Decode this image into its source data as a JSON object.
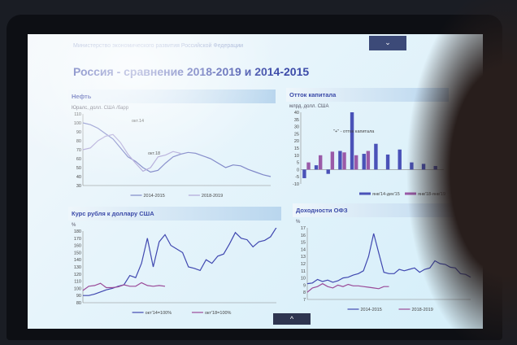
{
  "slide": {
    "org": "Министерство экономического развития Российской Федерации",
    "title": "Россия - сравнение 2018-2019 и 2014-2015",
    "top_button_icon": "chevron-down-icon",
    "bottom_button_icon": "chevron-up-icon"
  },
  "chart_data": [
    {
      "type": "line",
      "title": "Нефть",
      "ylabel": "Юралс, долл. США /барр",
      "ylim": [
        30,
        110
      ],
      "yticks": [
        30,
        40,
        50,
        60,
        70,
        80,
        90,
        100,
        110
      ],
      "annotations": [
        "окт.14",
        "окт.18"
      ],
      "series": [
        {
          "name": "2014-2015",
          "color": "#8088c8",
          "values": [
            100,
            98,
            94,
            88,
            82,
            72,
            62,
            57,
            50,
            45,
            47,
            55,
            62,
            65,
            67,
            66,
            63,
            60,
            55,
            50,
            53,
            52,
            48,
            45,
            42,
            40
          ]
        },
        {
          "name": "2018-2019",
          "color": "#b0a8d8",
          "values": [
            70,
            72,
            80,
            85,
            87,
            78,
            65,
            55,
            46,
            50,
            62,
            64,
            68,
            66
          ]
        }
      ],
      "legend": "bottom"
    },
    {
      "type": "bar",
      "title": "Отток капитала",
      "ylabel": "млрд. долл. США",
      "ylim": [
        -10,
        40
      ],
      "yticks": [
        -10,
        -5,
        0,
        5,
        10,
        15,
        20,
        25,
        30,
        35,
        40
      ],
      "annotations": [
        "\"+\" - отток капитала"
      ],
      "series": [
        {
          "name": "янв'14-дек'15",
          "color": "#4a52b8",
          "values": [
            -6,
            3,
            -3,
            13,
            40,
            11,
            18,
            10.5,
            14,
            5,
            4,
            2.5
          ]
        },
        {
          "name": "янв'18-янв'19",
          "color": "#9a5aa8",
          "values": [
            5,
            10,
            12.5,
            12,
            10,
            13,
            null,
            null,
            null,
            null,
            null,
            null
          ]
        }
      ],
      "legend": "bottom-right"
    },
    {
      "type": "line",
      "title": "Курс рубля к доллару США",
      "ylabel": "%",
      "ylim": [
        80,
        180
      ],
      "yticks": [
        80,
        90,
        100,
        110,
        120,
        130,
        140,
        150,
        160,
        170,
        180
      ],
      "series": [
        {
          "name": "окт'14=100%",
          "color": "#4048b0",
          "values": [
            90,
            90,
            92,
            95,
            98,
            100,
            103,
            105,
            118,
            115,
            135,
            170,
            130,
            165,
            175,
            160,
            155,
            150,
            130,
            128,
            125,
            140,
            135,
            145,
            148,
            162,
            178,
            170,
            168,
            158,
            165,
            167,
            172,
            185
          ]
        },
        {
          "name": "окт'18=100%",
          "color": "#9a4a98",
          "values": [
            97,
            103,
            104,
            107,
            101,
            101,
            102,
            105,
            103,
            103,
            108,
            104,
            103,
            104,
            103
          ]
        }
      ],
      "legend": "bottom"
    },
    {
      "type": "line",
      "title": "Доходности ОФЗ",
      "ylabel": "%",
      "ylim": [
        7,
        17
      ],
      "yticks": [
        7,
        8,
        9,
        10,
        11,
        12,
        13,
        14,
        15,
        16,
        17
      ],
      "series": [
        {
          "name": "2014-2015",
          "color": "#4048b0",
          "values": [
            9.2,
            9.3,
            9.8,
            9.5,
            9.7,
            9.4,
            9.6,
            10,
            10.1,
            10.4,
            10.6,
            11,
            13,
            16.2,
            13.5,
            10.8,
            10.6,
            10.6,
            11.2,
            11,
            11.2,
            11.4,
            10.8,
            11.2,
            11.4,
            12.4,
            12,
            11.9,
            11.5,
            11.4,
            10.6,
            10.5,
            10.1
          ]
        },
        {
          "name": "2018-2019",
          "color": "#9a4a98",
          "values": [
            8,
            8.6,
            8.8,
            9.2,
            8.8,
            8.6,
            9,
            8.8,
            9.1,
            8.9,
            8.9,
            8.8,
            8.7,
            8.6,
            8.5,
            8.8,
            8.8
          ]
        }
      ],
      "legend": "bottom"
    }
  ]
}
